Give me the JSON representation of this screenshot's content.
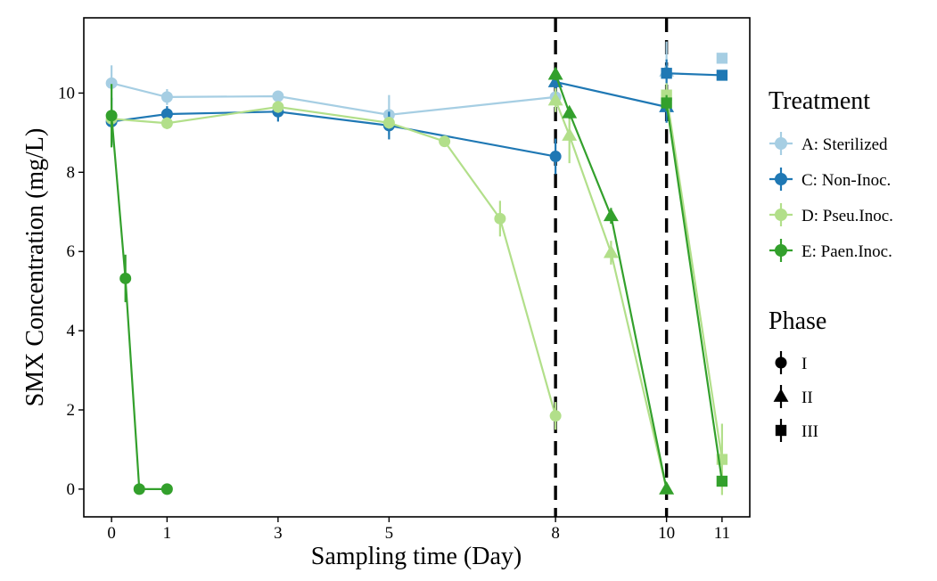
{
  "chart_data": {
    "type": "line",
    "xlabel": "Sampling time (Day)",
    "ylabel": "SMX Concentration (mg/L)",
    "xlim": [
      -0.5,
      11.5
    ],
    "ylim": [
      -0.7,
      11.9
    ],
    "x_ticks": [
      {
        "value": 0,
        "label": "0"
      },
      {
        "value": 1,
        "label": "1"
      },
      {
        "value": 3,
        "label": "3"
      },
      {
        "value": 5,
        "label": "5"
      },
      {
        "value": 8,
        "label": "8"
      },
      {
        "value": 10,
        "label": "10"
      },
      {
        "value": 11,
        "label": "11"
      }
    ],
    "y_ticks": [
      {
        "value": 0,
        "label": "0"
      },
      {
        "value": 2,
        "label": "2"
      },
      {
        "value": 4,
        "label": "4"
      },
      {
        "value": 6,
        "label": "6"
      },
      {
        "value": 8,
        "label": "8"
      },
      {
        "value": 10,
        "label": "10"
      }
    ],
    "vlines": [
      8,
      10
    ],
    "grid": false,
    "series": [
      {
        "name": "A: Sterilized",
        "color": "#a6cee3",
        "points": [
          {
            "x": 0,
            "y": 10.25,
            "err": 0.45,
            "phase": "I"
          },
          {
            "x": 1,
            "y": 9.9,
            "err": 0.2,
            "phase": "I"
          },
          {
            "x": 3,
            "y": 9.92,
            "err": 0.1,
            "phase": "I"
          },
          {
            "x": 5,
            "y": 9.45,
            "err": 0.5,
            "phase": "I"
          },
          {
            "x": 8,
            "y": 9.9,
            "err": 0.3,
            "phase": "I"
          },
          {
            "x": 10,
            "y": 10.55,
            "err": 0.75,
            "phase": "II"
          },
          {
            "x": 11,
            "y": 10.88,
            "err": 0.1,
            "phase": "III"
          }
        ]
      },
      {
        "name": "C: Non-Inoc.",
        "color": "#1f78b4",
        "points": [
          {
            "x": 0,
            "y": 9.28,
            "err": 0.6,
            "phase": "I"
          },
          {
            "x": 1,
            "y": 9.47,
            "err": 0.2,
            "phase": "I"
          },
          {
            "x": 3,
            "y": 9.53,
            "err": 0.25,
            "phase": "I"
          },
          {
            "x": 5,
            "y": 9.18,
            "err": 0.35,
            "phase": "I"
          },
          {
            "x": 8,
            "y": 8.4,
            "err": 0.45,
            "phase": "I"
          },
          {
            "x": 8,
            "y": 10.28,
            "err": 0.3,
            "phase": "II"
          },
          {
            "x": 10,
            "y": 9.65,
            "err": 0.4,
            "phase": "II"
          },
          {
            "x": 10,
            "y": 10.5,
            "err": 0.35,
            "phase": "III"
          },
          {
            "x": 11,
            "y": 10.45,
            "err": 0.1,
            "phase": "III"
          }
        ]
      },
      {
        "name": "D: Pseu.Inoc.",
        "color": "#b2df8a",
        "points": [
          {
            "x": 0,
            "y": 9.35,
            "err": 0.35,
            "phase": "I"
          },
          {
            "x": 1,
            "y": 9.24,
            "err": 0.15,
            "phase": "I"
          },
          {
            "x": 3,
            "y": 9.65,
            "err": 0.15,
            "phase": "I"
          },
          {
            "x": 5,
            "y": 9.25,
            "err": 0.15,
            "phase": "I"
          },
          {
            "x": 6,
            "y": 8.78,
            "err": 0.1,
            "phase": "I"
          },
          {
            "x": 7,
            "y": 6.83,
            "err": 0.45,
            "phase": "I"
          },
          {
            "x": 8,
            "y": 1.85,
            "err": 0.35,
            "phase": "I"
          },
          {
            "x": 8,
            "y": 9.82,
            "err": 0.3,
            "phase": "II"
          },
          {
            "x": 8.25,
            "y": 8.93,
            "err": 0.7,
            "phase": "II"
          },
          {
            "x": 9,
            "y": 5.97,
            "err": 0.3,
            "phase": "II"
          },
          {
            "x": 10,
            "y": 0,
            "err": 0.05,
            "phase": "II"
          },
          {
            "x": 10,
            "y": 9.95,
            "err": 0.3,
            "phase": "III"
          },
          {
            "x": 11,
            "y": 0.75,
            "err": 0.9,
            "phase": "III"
          }
        ]
      },
      {
        "name": "E: Paen.Inoc.",
        "color": "#33a02c",
        "points": [
          {
            "x": 0,
            "y": 9.43,
            "err": 0.8,
            "phase": "I"
          },
          {
            "x": 0.25,
            "y": 5.32,
            "err": 0.6,
            "phase": "I"
          },
          {
            "x": 0.5,
            "y": 0,
            "err": 0.05,
            "phase": "I"
          },
          {
            "x": 1,
            "y": 0,
            "err": 0.05,
            "phase": "I"
          },
          {
            "x": 8,
            "y": 10.47,
            "err": 0.15,
            "phase": "II"
          },
          {
            "x": 8.25,
            "y": 9.5,
            "err": 0.15,
            "phase": "II"
          },
          {
            "x": 9,
            "y": 6.9,
            "err": 0.2,
            "phase": "II"
          },
          {
            "x": 10,
            "y": 0,
            "err": 0.05,
            "phase": "II"
          },
          {
            "x": 10,
            "y": 9.75,
            "err": 0.2,
            "phase": "III"
          },
          {
            "x": 11,
            "y": 0.2,
            "err": 0.1,
            "phase": "III"
          }
        ]
      }
    ],
    "legend": {
      "placement": "right",
      "treatment_title": "Treatment",
      "phase_title": "Phase",
      "phases": [
        {
          "label": "I",
          "shape": "circle"
        },
        {
          "label": "II",
          "shape": "triangle"
        },
        {
          "label": "III",
          "shape": "square"
        }
      ]
    }
  }
}
